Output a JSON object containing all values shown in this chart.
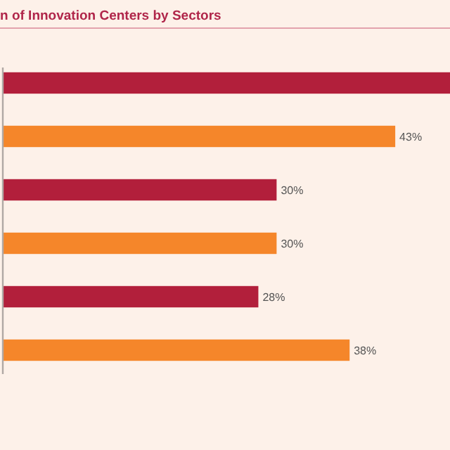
{
  "chart_data": {
    "type": "bar",
    "orientation": "horizontal",
    "title": "n of Innovation Centers by Sectors",
    "categories": [
      null,
      null,
      null,
      null,
      null,
      null
    ],
    "values": [
      49,
      43,
      30,
      30,
      28,
      38
    ],
    "colors": [
      "#b21f3b",
      "#f5862a",
      "#b21f3b",
      "#f5862a",
      "#b21f3b",
      "#f5862a"
    ],
    "value_labels": [
      null,
      "43%",
      "30%",
      "30%",
      "28%",
      "38%"
    ],
    "xlim": [
      0,
      49
    ]
  }
}
